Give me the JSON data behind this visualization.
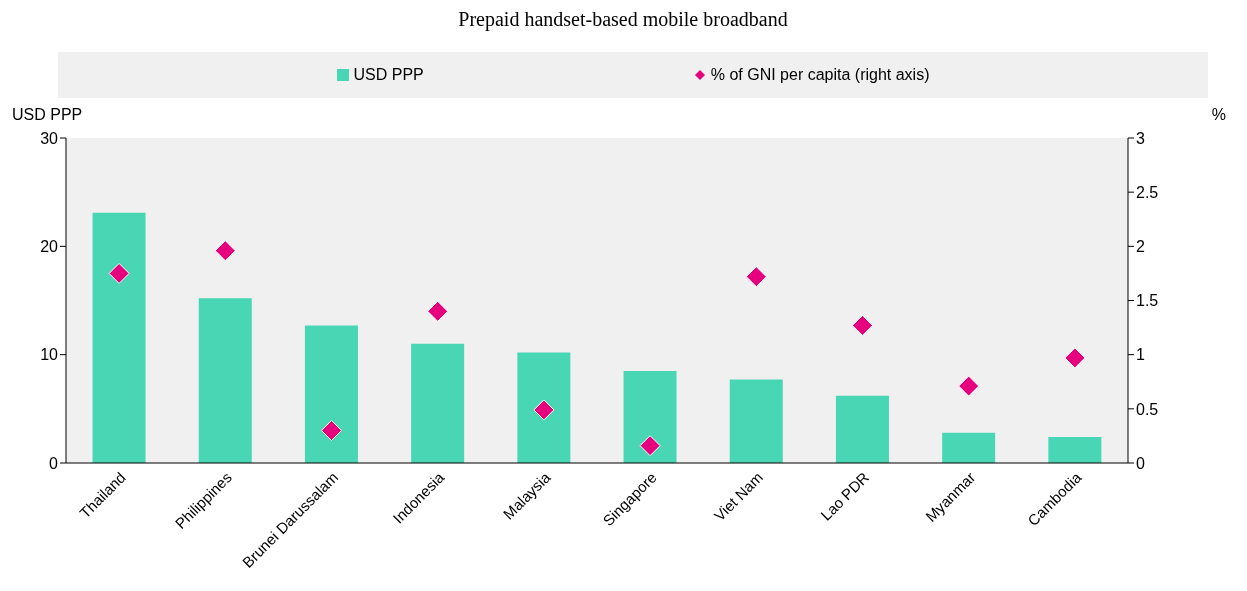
{
  "chart_data": {
    "type": "bar",
    "title": "Prepaid handset-based mobile broadband",
    "categories": [
      "Thailand",
      "Philippines",
      "Brunei Darussalam",
      "Indonesia",
      "Malaysia",
      "Singapore",
      "Viet Nam",
      "Lao PDR",
      "Myanmar",
      "Cambodia"
    ],
    "series": [
      {
        "name": "USD PPP",
        "color": "#48d6b5",
        "values": [
          23.1,
          15.2,
          12.7,
          11.0,
          10.2,
          8.5,
          7.7,
          6.2,
          2.8,
          2.4
        ]
      },
      {
        "name": "% of GNI per capita (right axis)",
        "type": "scatter",
        "axis": "y2",
        "color": "#e6007e",
        "values": [
          1.75,
          1.96,
          0.3,
          1.4,
          0.49,
          0.16,
          1.72,
          1.27,
          0.71,
          0.97
        ]
      }
    ],
    "ylabel": "USD PPP",
    "y2label": "%",
    "ylim": [
      0,
      30
    ],
    "yticks": [
      0,
      10,
      20,
      30
    ],
    "y2lim": [
      0,
      3
    ],
    "y2ticks": [
      0,
      0.5,
      1,
      1.5,
      2,
      2.5,
      3
    ],
    "legend": "top",
    "marker": "diamond"
  }
}
